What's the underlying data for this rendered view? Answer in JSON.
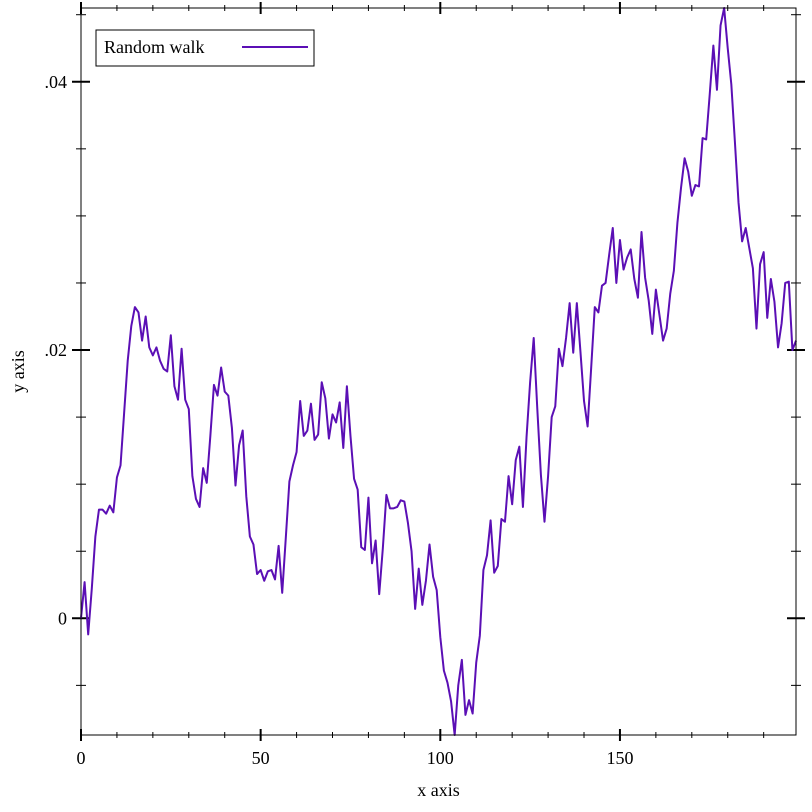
{
  "chart_data": {
    "type": "line",
    "title": "",
    "xlabel": "x axis",
    "ylabel": "y axis",
    "xlim": [
      0,
      199
    ],
    "ylim": [
      -0.0087,
      0.0455
    ],
    "x_ticks": [
      0,
      50,
      100,
      150
    ],
    "x_tick_labels": [
      "0",
      "50",
      "100",
      "150"
    ],
    "y_ticks": [
      0,
      0.02,
      0.04
    ],
    "y_tick_labels": [
      "0",
      ".02",
      ".04"
    ],
    "grid": false,
    "legend_position": "top-left",
    "series": [
      {
        "name": "Random walk",
        "color": "#5b0fb5",
        "x": [
          0,
          1,
          2,
          3,
          4,
          5,
          6,
          7,
          8,
          9,
          10,
          11,
          12,
          13,
          14,
          15,
          16,
          17,
          18,
          19,
          20,
          21,
          22,
          23,
          24,
          25,
          26,
          27,
          28,
          29,
          30,
          31,
          32,
          33,
          34,
          35,
          36,
          37,
          38,
          39,
          40,
          41,
          42,
          43,
          44,
          45,
          46,
          47,
          48,
          49,
          50,
          51,
          52,
          53,
          54,
          55,
          56,
          57,
          58,
          59,
          60,
          61,
          62,
          63,
          64,
          65,
          66,
          67,
          68,
          69,
          70,
          71,
          72,
          73,
          74,
          75,
          76,
          77,
          78,
          79,
          80,
          81,
          82,
          83,
          84,
          85,
          86,
          87,
          88,
          89,
          90,
          91,
          92,
          93,
          94,
          95,
          96,
          97,
          98,
          99,
          100,
          101,
          102,
          103,
          104,
          105,
          106,
          107,
          108,
          109,
          110,
          111,
          112,
          113,
          114,
          115,
          116,
          117,
          118,
          119,
          120,
          121,
          122,
          123,
          124,
          125,
          126,
          127,
          128,
          129,
          130,
          131,
          132,
          133,
          134,
          135,
          136,
          137,
          138,
          139,
          140,
          141,
          142,
          143,
          144,
          145,
          146,
          147,
          148,
          149,
          150,
          151,
          152,
          153,
          154,
          155,
          156,
          157,
          158,
          159,
          160,
          161,
          162,
          163,
          164,
          165,
          166,
          167,
          168,
          169,
          170,
          171,
          172,
          173,
          174,
          175,
          176,
          177,
          178,
          179,
          180,
          181,
          182,
          183,
          184,
          185,
          186,
          187,
          188,
          189,
          190,
          191,
          192,
          193,
          194,
          195,
          196,
          197,
          198,
          199
        ],
        "y": [
          0,
          0.0027,
          -0.0012,
          0.0022,
          0.0061,
          0.0081,
          0.0081,
          0.0078,
          0.0084,
          0.0079,
          0.0105,
          0.0114,
          0.0153,
          0.0192,
          0.0218,
          0.0232,
          0.0228,
          0.0207,
          0.0225,
          0.0202,
          0.0196,
          0.0202,
          0.0192,
          0.0186,
          0.0184,
          0.0211,
          0.0173,
          0.0163,
          0.0201,
          0.0163,
          0.0156,
          0.0106,
          0.0089,
          0.0083,
          0.0112,
          0.0101,
          0.0136,
          0.0174,
          0.0166,
          0.0187,
          0.0169,
          0.0166,
          0.0142,
          0.0099,
          0.0129,
          0.014,
          0.0091,
          0.0061,
          0.0055,
          0.0033,
          0.0036,
          0.0028,
          0.0035,
          0.0036,
          0.0029,
          0.0054,
          0.0019,
          0.006,
          0.0102,
          0.0114,
          0.0124,
          0.0162,
          0.0136,
          0.014,
          0.016,
          0.0133,
          0.0137,
          0.0176,
          0.0164,
          0.0134,
          0.0152,
          0.0146,
          0.0161,
          0.0127,
          0.0173,
          0.0136,
          0.0104,
          0.0096,
          0.0053,
          0.0051,
          0.009,
          0.0041,
          0.0058,
          0.0018,
          0.0052,
          0.0092,
          0.0082,
          0.0082,
          0.0083,
          0.0088,
          0.0087,
          0.0071,
          0.005,
          0.0007,
          0.0037,
          0.001,
          0.0028,
          0.0055,
          0.0031,
          0.0021,
          -0.0014,
          -0.0039,
          -0.0048,
          -0.0062,
          -0.0087,
          -0.005,
          -0.0031,
          -0.0072,
          -0.0061,
          -0.0071,
          -0.0033,
          -0.0013,
          0.0036,
          0.0047,
          0.0073,
          0.0034,
          0.0039,
          0.0074,
          0.0072,
          0.0106,
          0.0085,
          0.0118,
          0.0128,
          0.0083,
          0.0135,
          0.0176,
          0.0209,
          0.0156,
          0.0107,
          0.0072,
          0.0106,
          0.015,
          0.0158,
          0.0201,
          0.0188,
          0.0209,
          0.0235,
          0.0198,
          0.0235,
          0.0199,
          0.0162,
          0.0143,
          0.0187,
          0.0232,
          0.0228,
          0.0248,
          0.025,
          0.0271,
          0.0291,
          0.025,
          0.0282,
          0.026,
          0.0269,
          0.0275,
          0.0253,
          0.0239,
          0.0288,
          0.0254,
          0.0237,
          0.0212,
          0.0245,
          0.0226,
          0.0207,
          0.0216,
          0.0242,
          0.0259,
          0.0295,
          0.0321,
          0.0343,
          0.0333,
          0.0315,
          0.0323,
          0.0322,
          0.0358,
          0.0357,
          0.0391,
          0.0427,
          0.0394,
          0.0442,
          0.0455,
          0.0425,
          0.0398,
          0.0355,
          0.031,
          0.0281,
          0.0291,
          0.0276,
          0.0261,
          0.0216,
          0.0264,
          0.0273,
          0.0224,
          0.0253,
          0.0236,
          0.0202,
          0.022,
          0.025,
          0.0251,
          0.02,
          0.0207
        ]
      }
    ]
  }
}
